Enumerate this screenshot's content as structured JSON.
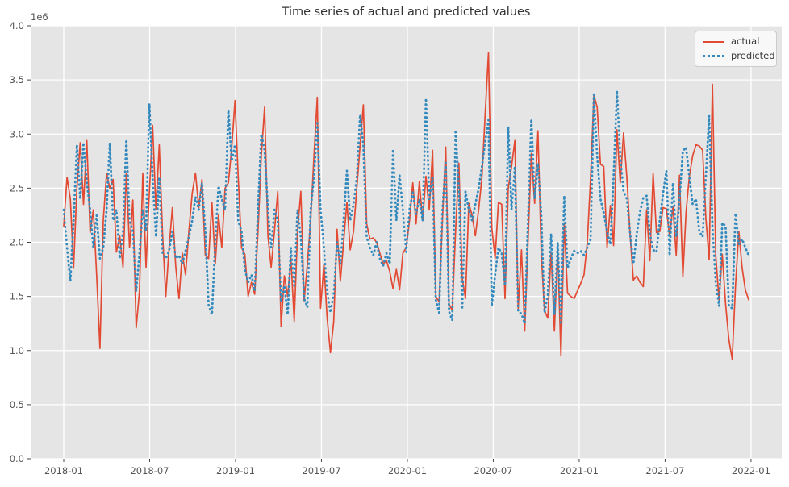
{
  "chart": {
    "title": "Time series of actual and predicted values",
    "y_offset_label": "1e6",
    "legend": {
      "items": [
        {
          "label": "actual"
        },
        {
          "label": "predicted"
        }
      ]
    }
  },
  "chart_data": {
    "type": "line",
    "title": "Time series of actual and predicted values",
    "xlabel": "",
    "ylabel": "",
    "grid": true,
    "legend_position": "upper right",
    "plot_background": "#E5E5E5",
    "grid_color": "#FFFFFF",
    "tick_label_color": "#555555",
    "ylim": [
      0,
      4000000
    ],
    "unit_multiplier": 1000000,
    "y_tick_labels": [
      "0.0",
      "0.5",
      "1.0",
      "1.5",
      "2.0",
      "2.5",
      "3.0",
      "3.5",
      "4.0"
    ],
    "x_tick_labels": [
      "2018-01",
      "2018-07",
      "2019-01",
      "2019-07",
      "2020-01",
      "2020-07",
      "2021-01",
      "2021-07",
      "2022-01"
    ],
    "x_tick_interval_months": 6,
    "x_start_date": "2018-01-01",
    "x_interval_days": 7,
    "series": [
      {
        "name": "actual",
        "color": "#E24A33",
        "style": "solid",
        "values_millions": [
          2.15,
          2.6,
          2.4,
          1.76,
          2.5,
          2.92,
          2.35,
          2.94,
          2.09,
          2.3,
          1.7,
          1.02,
          2.2,
          2.64,
          2.5,
          2.58,
          1.91,
          2.06,
          1.77,
          2.64,
          1.95,
          2.39,
          1.21,
          1.55,
          2.64,
          1.77,
          2.45,
          3.08,
          2.3,
          2.9,
          2.08,
          1.5,
          1.95,
          2.32,
          1.78,
          1.48,
          1.9,
          1.7,
          2.1,
          2.45,
          2.64,
          2.32,
          2.58,
          1.88,
          1.85,
          2.37,
          1.8,
          2.25,
          1.95,
          2.5,
          2.55,
          2.87,
          3.31,
          2.6,
          1.95,
          1.89,
          1.5,
          1.63,
          1.52,
          2.1,
          2.8,
          3.25,
          2.06,
          1.77,
          2.1,
          2.47,
          1.22,
          1.69,
          1.5,
          1.85,
          1.27,
          2.1,
          2.47,
          1.46,
          1.8,
          2.2,
          2.8,
          3.34,
          1.39,
          1.8,
          1.3,
          0.98,
          1.27,
          2.12,
          1.64,
          2.0,
          2.37,
          1.93,
          2.1,
          2.5,
          2.9,
          3.27,
          2.17,
          2.03,
          2.04,
          2.0,
          1.9,
          1.8,
          1.83,
          1.73,
          1.57,
          1.75,
          1.56,
          1.9,
          1.95,
          2.2,
          2.55,
          2.17,
          2.56,
          2.2,
          2.61,
          2.3,
          2.85,
          1.5,
          1.45,
          2.2,
          2.88,
          1.43,
          1.37,
          2.1,
          2.73,
          1.67,
          1.48,
          2.36,
          2.25,
          2.06,
          2.3,
          2.6,
          3.2,
          3.75,
          2.14,
          1.85,
          2.37,
          2.35,
          1.48,
          2.5,
          2.7,
          2.94,
          1.39,
          1.93,
          1.18,
          2.0,
          2.82,
          2.36,
          3.03,
          1.9,
          1.37,
          1.3,
          1.91,
          1.18,
          1.93,
          0.95,
          2.18,
          1.53,
          1.5,
          1.48,
          1.55,
          1.62,
          1.7,
          2.0,
          2.6,
          3.36,
          3.25,
          2.72,
          2.7,
          1.95,
          2.34,
          1.97,
          3.04,
          2.55,
          3.01,
          2.6,
          2.06,
          1.65,
          1.69,
          1.63,
          1.59,
          2.3,
          1.83,
          2.64,
          2.09,
          2.1,
          2.32,
          2.31,
          2.06,
          2.33,
          1.88,
          2.62,
          1.68,
          2.28,
          2.61,
          2.8,
          2.9,
          2.89,
          2.85,
          2.23,
          1.84,
          3.46,
          1.88,
          1.46,
          1.89,
          1.43,
          1.1,
          0.92,
          1.6,
          2.1,
          1.77,
          1.56,
          1.47
        ]
      },
      {
        "name": "predicted",
        "color": "#348ABD",
        "style": "dotted",
        "values_millions": [
          2.3,
          1.95,
          1.64,
          2.2,
          2.9,
          2.4,
          2.92,
          2.55,
          2.3,
          1.95,
          2.25,
          1.85,
          1.95,
          2.3,
          2.92,
          2.2,
          2.3,
          1.85,
          2.1,
          2.95,
          2.2,
          2.1,
          1.55,
          1.9,
          2.3,
          2.1,
          3.28,
          2.6,
          2.05,
          2.6,
          1.9,
          1.85,
          1.92,
          2.1,
          1.85,
          1.88,
          1.8,
          1.92,
          2.05,
          2.2,
          2.42,
          2.3,
          2.55,
          2.1,
          1.42,
          1.33,
          2.0,
          2.52,
          2.4,
          2.3,
          3.22,
          2.75,
          2.9,
          2.2,
          2.1,
          1.75,
          1.63,
          1.7,
          1.55,
          2.3,
          3.0,
          2.85,
          2.3,
          1.95,
          2.3,
          2.2,
          1.45,
          1.6,
          1.33,
          1.95,
          1.6,
          2.3,
          2.05,
          1.48,
          1.4,
          2.3,
          2.6,
          3.1,
          2.3,
          1.95,
          1.55,
          1.35,
          1.52,
          2.0,
          1.8,
          2.2,
          2.66,
          2.2,
          2.35,
          2.6,
          3.18,
          2.9,
          2.05,
          1.95,
          1.88,
          2.0,
          1.85,
          1.78,
          1.9,
          1.8,
          2.86,
          2.2,
          2.62,
          2.3,
          1.91,
          2.3,
          2.46,
          2.26,
          2.4,
          2.2,
          3.33,
          2.4,
          2.6,
          1.47,
          1.35,
          2.3,
          2.75,
          1.36,
          1.28,
          3.02,
          2.5,
          1.38,
          2.47,
          2.3,
          2.2,
          2.35,
          2.5,
          2.7,
          2.93,
          3.13,
          1.41,
          1.7,
          1.95,
          1.9,
          1.6,
          3.07,
          2.3,
          2.7,
          1.36,
          1.34,
          1.25,
          2.2,
          3.14,
          2.4,
          2.73,
          2.25,
          1.35,
          1.51,
          2.08,
          1.33,
          2.0,
          1.24,
          2.43,
          1.76,
          1.85,
          1.92,
          1.9,
          1.92,
          1.88,
          1.95,
          2.03,
          3.37,
          2.8,
          2.4,
          2.27,
          2.1,
          1.98,
          2.6,
          3.4,
          2.8,
          2.47,
          2.4,
          2.08,
          1.8,
          2.07,
          2.28,
          2.41,
          2.43,
          2.08,
          1.93,
          1.91,
          2.2,
          2.45,
          2.66,
          1.88,
          2.55,
          2.05,
          2.4,
          2.84,
          2.88,
          2.6,
          2.35,
          2.4,
          2.1,
          2.05,
          2.6,
          3.17,
          2.15,
          1.62,
          1.41,
          2.18,
          2.15,
          1.41,
          1.39,
          2.27,
          1.98,
          2.03,
          1.95,
          1.88
        ]
      }
    ]
  }
}
